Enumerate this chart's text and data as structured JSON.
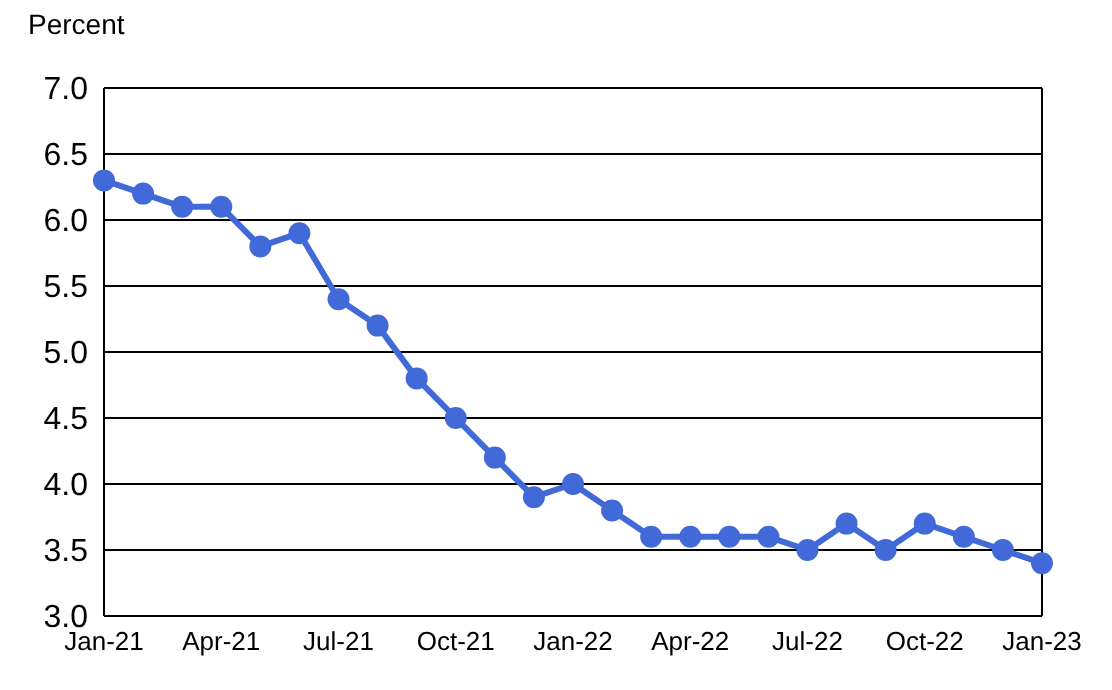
{
  "chart_data": {
    "type": "line",
    "ylabel": "Percent",
    "categories": [
      "Jan-21",
      null,
      null,
      "Apr-21",
      null,
      null,
      "Jul-21",
      null,
      null,
      "Oct-21",
      null,
      null,
      "Jan-22",
      null,
      null,
      "Apr-22",
      null,
      null,
      "Jul-22",
      null,
      null,
      "Oct-22",
      null,
      null,
      "Jan-23"
    ],
    "series": [
      {
        "color": "#4169d8",
        "values": [
          6.3,
          6.2,
          6.1,
          6.1,
          5.8,
          5.9,
          5.4,
          5.2,
          4.8,
          4.5,
          4.2,
          3.9,
          4.0,
          3.8,
          3.6,
          3.6,
          3.6,
          3.6,
          3.5,
          3.7,
          3.5,
          3.7,
          3.6,
          3.5,
          3.4
        ]
      }
    ],
    "ylim": [
      3.0,
      7.0
    ],
    "yticks": [
      {
        "value": 3.0,
        "label": "3.0"
      },
      {
        "value": 3.5,
        "label": "3.5"
      },
      {
        "value": 4.0,
        "label": "4.0"
      },
      {
        "value": 4.5,
        "label": "4.5"
      },
      {
        "value": 5.0,
        "label": "5.0"
      },
      {
        "value": 5.5,
        "label": "5.5"
      },
      {
        "value": 6.0,
        "label": "6.0"
      },
      {
        "value": 6.5,
        "label": "6.5"
      },
      {
        "value": 7.0,
        "label": "7.0"
      }
    ],
    "grid": "y",
    "marker": "circle",
    "line_style": "solid",
    "legend": false
  }
}
